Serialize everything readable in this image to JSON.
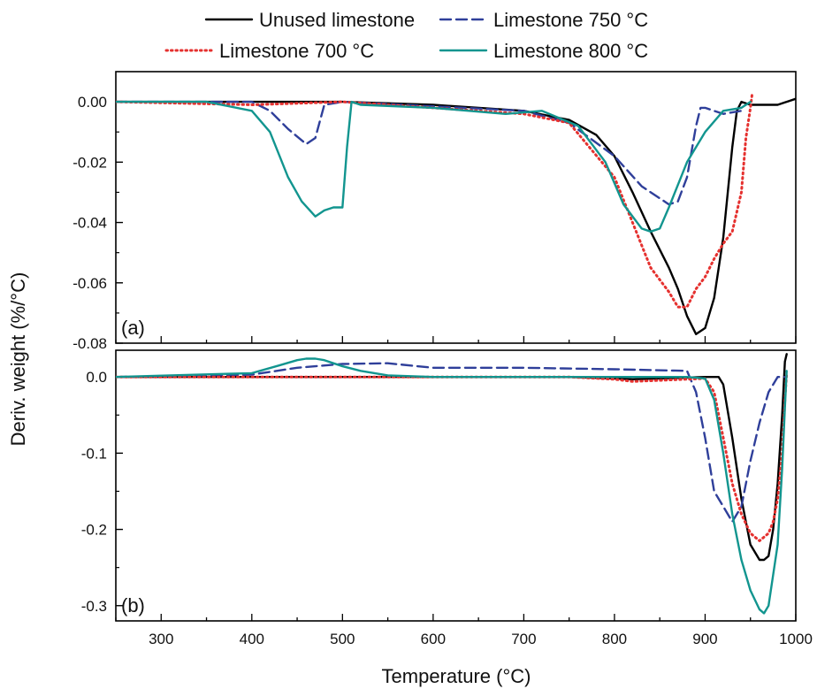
{
  "chart_data": {
    "type": "line",
    "xlabel": "Temperature (°C)",
    "ylabel": "Deriv. weight (%/°C)",
    "xlim": [
      250,
      1000
    ],
    "xticks": [
      "300",
      "400",
      "500",
      "600",
      "700",
      "800",
      "900",
      "1000"
    ],
    "grid": false,
    "legend_placement": "top",
    "series_styles": [
      {
        "name": "Unused limestone",
        "color": "#000000",
        "dash": "solid"
      },
      {
        "name": "Limestone 750 °C",
        "color": "#2f3f9a",
        "dash": "dashed"
      },
      {
        "name": "Limestone 700 °C",
        "color": "#e5312f",
        "dash": "dotted"
      },
      {
        "name": "Limestone 800 °C",
        "color": "#12958f",
        "dash": "solid"
      }
    ],
    "panels": [
      {
        "label": "(a)",
        "ylim": [
          -0.08,
          0.01
        ],
        "yticks": [
          "0.00",
          "-0.02",
          "-0.04",
          "-0.06",
          "-0.08"
        ],
        "series": [
          {
            "name": "Unused limestone",
            "x": [
              250,
              400,
              500,
              600,
              700,
              750,
              780,
              800,
              820,
              840,
              860,
              870,
              880,
              890,
              900,
              910,
              920,
              930,
              935,
              940,
              950,
              960,
              980,
              1000
            ],
            "y": [
              0,
              0,
              0,
              -0.001,
              -0.003,
              -0.006,
              -0.011,
              -0.018,
              -0.03,
              -0.043,
              -0.055,
              -0.062,
              -0.071,
              -0.077,
              -0.075,
              -0.065,
              -0.045,
              -0.015,
              -0.003,
              0,
              -0.001,
              -0.001,
              -0.001,
              0.001
            ]
          },
          {
            "name": "Limestone 750 °C",
            "x": [
              250,
              400,
              420,
              440,
              460,
              470,
              480,
              500,
              700,
              750,
              800,
              830,
              860,
              870,
              880,
              890,
              895,
              900,
              920,
              940
            ],
            "y": [
              0,
              0,
              -0.003,
              -0.009,
              -0.014,
              -0.012,
              -0.001,
              0,
              -0.003,
              -0.007,
              -0.018,
              -0.028,
              -0.034,
              -0.033,
              -0.025,
              -0.008,
              -0.002,
              -0.002,
              -0.004,
              -0.003
            ]
          },
          {
            "name": "Limestone 700 °C",
            "x": [
              250,
              400,
              500,
              600,
              700,
              750,
              800,
              820,
              840,
              860,
              870,
              880,
              890,
              900,
              910,
              920,
              930,
              940,
              945,
              950,
              952
            ],
            "y": [
              0,
              -0.001,
              0,
              -0.002,
              -0.004,
              -0.007,
              -0.025,
              -0.04,
              -0.055,
              -0.063,
              -0.068,
              -0.068,
              -0.062,
              -0.058,
              -0.052,
              -0.047,
              -0.043,
              -0.03,
              -0.012,
              -0.002,
              0.003
            ]
          },
          {
            "name": "Limestone 800 °C",
            "x": [
              250,
              350,
              400,
              420,
              440,
              455,
              470,
              480,
              490,
              500,
              505,
              510,
              520,
              600,
              680,
              720,
              760,
              790,
              810,
              830,
              840,
              850,
              860,
              880,
              900,
              920,
              940,
              950
            ],
            "y": [
              0,
              0,
              -0.003,
              -0.01,
              -0.025,
              -0.033,
              -0.038,
              -0.036,
              -0.035,
              -0.035,
              -0.015,
              0,
              -0.001,
              -0.002,
              -0.004,
              -0.003,
              -0.008,
              -0.02,
              -0.034,
              -0.042,
              -0.043,
              -0.042,
              -0.035,
              -0.02,
              -0.01,
              -0.003,
              -0.002,
              0
            ]
          }
        ]
      },
      {
        "label": "(b)",
        "ylim": [
          -0.32,
          0.035
        ],
        "yticks": [
          "0.0",
          "-0.1",
          "-0.2",
          "-0.3"
        ],
        "series": [
          {
            "name": "Unused limestone",
            "x": [
              250,
              400,
              600,
              750,
              800,
              820,
              900,
              915,
              920,
              930,
              940,
              950,
              960,
              965,
              970,
              975,
              980,
              985,
              988,
              990
            ],
            "y": [
              0,
              0,
              0,
              0,
              -0.002,
              -0.003,
              0,
              0,
              -0.01,
              -0.08,
              -0.16,
              -0.22,
              -0.24,
              -0.24,
              -0.235,
              -0.2,
              -0.14,
              -0.05,
              0.02,
              0.03
            ]
          },
          {
            "name": "Limestone 750 °C",
            "x": [
              250,
              400,
              450,
              500,
              550,
              600,
              650,
              700,
              800,
              880,
              890,
              900,
              910,
              920,
              930,
              940,
              950,
              960,
              970,
              980,
              990
            ],
            "y": [
              0,
              0.003,
              0.012,
              0.017,
              0.018,
              0.012,
              0.012,
              0.012,
              0.01,
              0.008,
              -0.02,
              -0.08,
              -0.15,
              -0.17,
              -0.19,
              -0.17,
              -0.11,
              -0.06,
              -0.02,
              0,
              0
            ]
          },
          {
            "name": "Limestone 700 °C",
            "x": [
              250,
              400,
              600,
              750,
              800,
              820,
              900,
              910,
              920,
              930,
              940,
              950,
              960,
              970,
              975,
              980,
              985,
              988,
              990
            ],
            "y": [
              0,
              0,
              0,
              0,
              -0.003,
              -0.006,
              -0.002,
              -0.02,
              -0.08,
              -0.14,
              -0.18,
              -0.205,
              -0.215,
              -0.205,
              -0.19,
              -0.16,
              -0.1,
              -0.03,
              0.005
            ]
          },
          {
            "name": "Limestone 800 °C",
            "x": [
              250,
              400,
              430,
              450,
              460,
              470,
              480,
              500,
              520,
              550,
              600,
              700,
              800,
              880,
              900,
              910,
              920,
              930,
              940,
              950,
              960,
              965,
              970,
              980,
              985,
              988,
              990
            ],
            "y": [
              0,
              0.005,
              0.015,
              0.022,
              0.024,
              0.024,
              0.022,
              0.014,
              0.008,
              0.002,
              0,
              0,
              0,
              0,
              -0.002,
              -0.03,
              -0.1,
              -0.18,
              -0.24,
              -0.28,
              -0.305,
              -0.31,
              -0.3,
              -0.22,
              -0.12,
              -0.04,
              0.008
            ]
          }
        ]
      }
    ]
  }
}
